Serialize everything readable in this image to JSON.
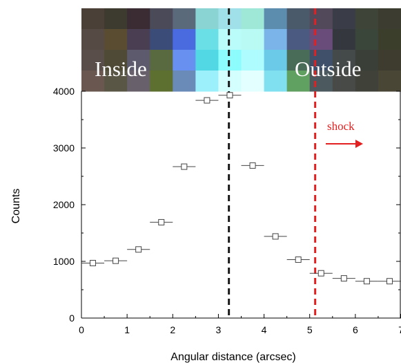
{
  "chart_data": {
    "type": "scatter",
    "xlabel": "Angular distance (arcsec)",
    "ylabel": "Counts",
    "xlim": [
      0,
      7
    ],
    "ylim": [
      0,
      4000
    ],
    "x_ticks": [
      "0",
      "1",
      "2",
      "3",
      "4",
      "5",
      "6",
      "7"
    ],
    "y_ticks": [
      "0",
      "1000",
      "2000",
      "3000",
      "4000"
    ],
    "grid": false,
    "points": [
      {
        "x": 0.25,
        "y": 970,
        "xerr": 0.25
      },
      {
        "x": 0.75,
        "y": 1010,
        "xerr": 0.25
      },
      {
        "x": 1.25,
        "y": 1210,
        "xerr": 0.25
      },
      {
        "x": 1.75,
        "y": 1690,
        "xerr": 0.25
      },
      {
        "x": 2.25,
        "y": 2670,
        "xerr": 0.25
      },
      {
        "x": 2.75,
        "y": 3840,
        "xerr": 0.25
      },
      {
        "x": 3.25,
        "y": 3930,
        "xerr": 0.25
      },
      {
        "x": 3.75,
        "y": 2690,
        "xerr": 0.25
      },
      {
        "x": 4.25,
        "y": 1440,
        "xerr": 0.25
      },
      {
        "x": 4.75,
        "y": 1030,
        "xerr": 0.25
      },
      {
        "x": 5.25,
        "y": 790,
        "xerr": 0.25
      },
      {
        "x": 5.75,
        "y": 700,
        "xerr": 0.25
      },
      {
        "x": 6.25,
        "y": 650,
        "xerr": 0.25
      },
      {
        "x": 6.75,
        "y": 650,
        "xerr": 0.25
      }
    ],
    "vlines": [
      {
        "x": 3.23,
        "color": "#1a1a1a",
        "style": "dashed"
      },
      {
        "x": 5.12,
        "color": "#e41f1f",
        "style": "dashed"
      }
    ],
    "annotations": {
      "inside": "Inside",
      "outside": "Outside",
      "shock": "shock"
    },
    "image_strip": {
      "rows": [
        [
          "#4a4038",
          "#3d3a30",
          "#3b2c34",
          "#4a4a58",
          "#5a6a7a",
          "#8ad4d4",
          "#a0e0e8",
          "#9fe8d8",
          "#5c8cae",
          "#4a5a6a",
          "#524a5a",
          "#3a3c48",
          "#3f4438",
          "#3c3c30"
        ],
        [
          "#564a44",
          "#5a4c30",
          "#4a3e52",
          "#3c4c78",
          "#4a6ae0",
          "#6ae0e6",
          "#bafcfa",
          "#bafaf4",
          "#7ab4e8",
          "#4a5a80",
          "#6a4c7a",
          "#34383e",
          "#3a463a",
          "#3c3e2c"
        ],
        [
          "#5a4e4a",
          "#4e4a36",
          "#5c5a6c",
          "#5a6a40",
          "#6890f0",
          "#52d8e4",
          "#8cfcfc",
          "#aefcfe",
          "#6acae8",
          "#486c58",
          "#40506a",
          "#444a4a",
          "#3a4038",
          "#3e3c2e"
        ],
        [
          "#6a5850",
          "#5a5646",
          "#68606a",
          "#5e7030",
          "#6a8ab8",
          "#9cf0fc",
          "#d4ffff",
          "#e4ffff",
          "#80e0f0",
          "#60a060",
          "#4c5a60",
          "#484a48",
          "#40423a",
          "#4a4636"
        ]
      ]
    }
  }
}
